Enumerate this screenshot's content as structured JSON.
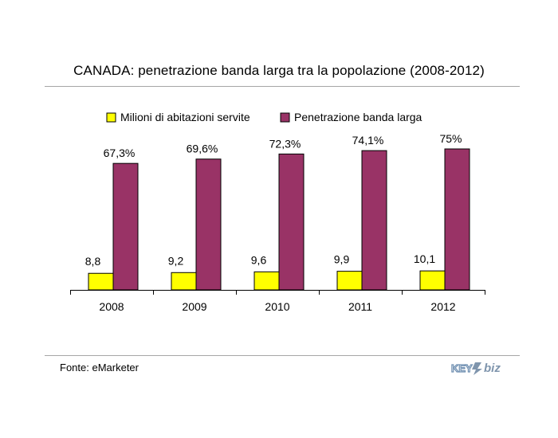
{
  "title": "CANADA: penetrazione banda larga tra la popolazione (2008-2012)",
  "source": "Fonte: eMarketer",
  "logo_text": "KEY4biz",
  "colors": {
    "series1": "#ffff00",
    "series2": "#993366",
    "axis": "#000000",
    "rule": "#a6a6a6"
  },
  "chart_data": {
    "type": "bar",
    "categories": [
      "2008",
      "2009",
      "2010",
      "2011",
      "2012"
    ],
    "series": [
      {
        "name": "Milioni di abitazioni servite",
        "values": [
          8.8,
          9.2,
          9.6,
          9.9,
          10.1
        ],
        "labels": [
          "8,8",
          "9,2",
          "9,6",
          "9,9",
          "10,1"
        ],
        "color": "#ffff00"
      },
      {
        "name": "Penetrazione banda larga",
        "values": [
          67.3,
          69.6,
          72.3,
          74.1,
          75
        ],
        "labels": [
          "67,3%",
          "69,6%",
          "72,3%",
          "74,1%",
          "75%"
        ],
        "color": "#993366"
      }
    ],
    "legend_position": "top",
    "grid": false
  }
}
